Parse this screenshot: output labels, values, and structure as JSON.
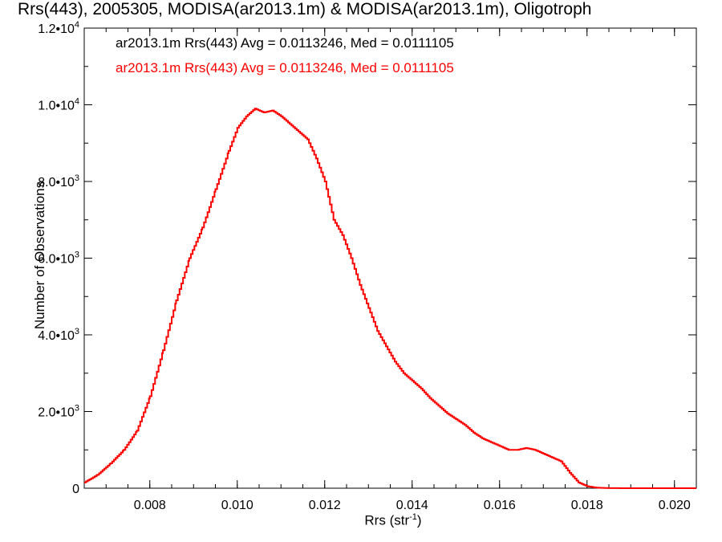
{
  "chart_data": {
    "type": "line",
    "title": "Rrs(443), 2005305, MODISA(ar2013.1m) & MODISA(ar2013.1m), Oligotroph",
    "xlabel": "Rrs (str",
    "xlabel_sup": "-1",
    "xlabel_suffix": ")",
    "ylabel": "Number of Observations",
    "xlim": [
      0.0065,
      0.0205
    ],
    "ylim": [
      0,
      12000
    ],
    "x_ticks": [
      0.008,
      0.01,
      0.012,
      0.014,
      0.016,
      0.018,
      0.02
    ],
    "x_tick_labels": [
      "0.008",
      "0.010",
      "0.012",
      "0.014",
      "0.016",
      "0.018",
      "0.020"
    ],
    "y_ticks": [
      0,
      2000,
      4000,
      6000,
      8000,
      10000,
      12000
    ],
    "y_tick_labels": [
      {
        "base": "0",
        "exp": ""
      },
      {
        "base": "2.0•1",
        "exp": "3"
      },
      {
        "base": "4.0•1",
        "exp": "3"
      },
      {
        "base": "6.0•1",
        "exp": "3"
      },
      {
        "base": "8.0•1",
        "exp": "3"
      },
      {
        "base": "1.0•1",
        "exp": "4"
      },
      {
        "base": "1.2•1",
        "exp": "4"
      }
    ],
    "grid": false,
    "legend_placement": "top-left",
    "legend": [
      {
        "text": "ar2013.1m Rrs(443) Avg = 0.0113246, Med = 0.0111105",
        "color": "#000000"
      },
      {
        "text": "ar2013.1m Rrs(443) Avg = 0.0113246, Med = 0.0111105",
        "color": "#ff0000"
      }
    ],
    "series": [
      {
        "color": "#ff0000",
        "step": true,
        "x": [
          0.0065,
          0.0068,
          0.0071,
          0.0074,
          0.0077,
          0.008,
          0.0083,
          0.0086,
          0.0089,
          0.0092,
          0.0095,
          0.0098,
          0.01,
          0.0102,
          0.0104,
          0.0106,
          0.0108,
          0.011,
          0.0112,
          0.0114,
          0.0116,
          0.0118,
          0.012,
          0.0122,
          0.0124,
          0.0126,
          0.0128,
          0.013,
          0.0132,
          0.0134,
          0.0136,
          0.0138,
          0.014,
          0.0142,
          0.0144,
          0.0146,
          0.0148,
          0.015,
          0.0152,
          0.0154,
          0.0156,
          0.0158,
          0.016,
          0.0162,
          0.0164,
          0.0166,
          0.0168,
          0.017,
          0.0172,
          0.0174,
          0.0176,
          0.0178,
          0.018,
          0.0182,
          0.0184,
          0.0186,
          0.019,
          0.0195,
          0.02,
          0.0205
        ],
        "y": [
          150,
          350,
          650,
          1000,
          1500,
          2400,
          3600,
          4900,
          6000,
          6800,
          7800,
          8800,
          9400,
          9700,
          9900,
          9800,
          9850,
          9700,
          9500,
          9300,
          9100,
          8600,
          8000,
          7000,
          6600,
          6000,
          5300,
          4700,
          4100,
          3700,
          3300,
          3000,
          2800,
          2600,
          2350,
          2150,
          1950,
          1800,
          1650,
          1450,
          1300,
          1200,
          1100,
          1000,
          1000,
          1050,
          1000,
          900,
          800,
          700,
          400,
          150,
          50,
          15,
          5,
          2,
          0,
          0,
          0,
          0
        ]
      }
    ]
  }
}
